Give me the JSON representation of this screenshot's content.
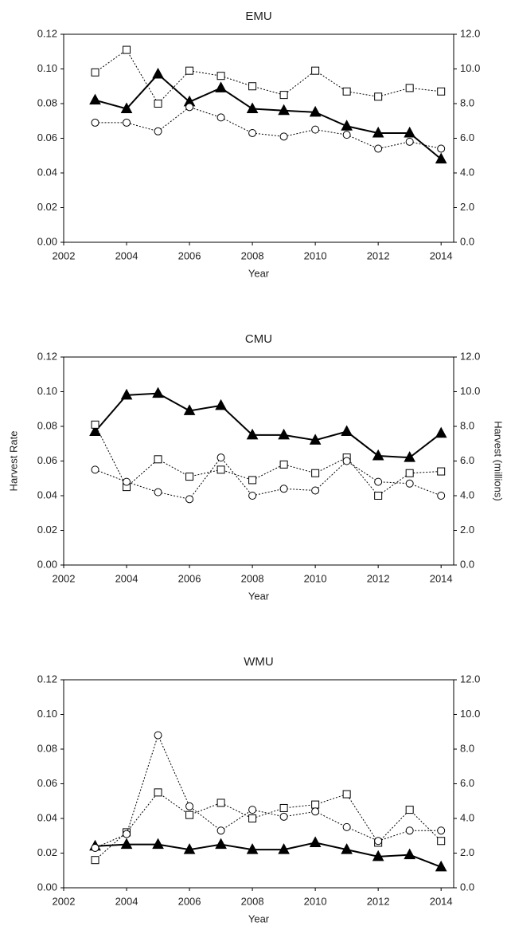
{
  "chart_data": [
    {
      "type": "line",
      "title": "EMU",
      "xlabel": "Year",
      "x": [
        2003,
        2004,
        2005,
        2006,
        2007,
        2008,
        2009,
        2010,
        2011,
        2012,
        2013,
        2014
      ],
      "xlim": [
        2002,
        2014.4
      ],
      "xticks": [
        2002,
        2004,
        2006,
        2008,
        2010,
        2012,
        2014
      ],
      "ylim": [
        0,
        0.12
      ],
      "yticks": [
        {
          "value": 0,
          "label": "0.00"
        },
        {
          "value": 0.02,
          "label": "0.02"
        },
        {
          "value": 0.04,
          "label": "0.04"
        },
        {
          "value": 0.06,
          "label": "0.06"
        },
        {
          "value": 0.08,
          "label": "0.08"
        },
        {
          "value": 0.1,
          "label": "0.10"
        },
        {
          "value": 0.12,
          "label": "0.12"
        }
      ],
      "y2lim": [
        0,
        12
      ],
      "y2ticks": [
        {
          "value": 0,
          "label": "0.0"
        },
        {
          "value": 2,
          "label": "2.0"
        },
        {
          "value": 4,
          "label": "4.0"
        },
        {
          "value": 6,
          "label": "6.0"
        },
        {
          "value": 8,
          "label": "8.0"
        },
        {
          "value": 10,
          "label": "10.0"
        },
        {
          "value": 12,
          "label": "12.0"
        }
      ],
      "series": [
        {
          "color": "#000000",
          "marker": "triangle",
          "line": "solid",
          "values": [
            0.082,
            0.077,
            0.097,
            0.081,
            0.089,
            0.077,
            0.076,
            0.075,
            0.067,
            0.063,
            0.063,
            0.048
          ]
        },
        {
          "color": "#000000",
          "marker": "square",
          "line": "dotted",
          "axis": "y2",
          "values": [
            9.8,
            11.1,
            8.0,
            9.9,
            9.6,
            9.0,
            8.5,
            9.9,
            8.7,
            8.4,
            8.9,
            8.7
          ]
        },
        {
          "color": "#000000",
          "marker": "circle",
          "line": "dotted",
          "values": [
            0.069,
            0.069,
            0.064,
            0.078,
            0.072,
            0.063,
            0.061,
            0.065,
            0.062,
            0.054,
            0.058,
            0.054
          ]
        }
      ]
    },
    {
      "type": "line",
      "title": "CMU",
      "xlabel": "Year",
      "ylabel": "Harvest Rate",
      "y2label": "Harvest (millions)",
      "x": [
        2003,
        2004,
        2005,
        2006,
        2007,
        2008,
        2009,
        2010,
        2011,
        2012,
        2013,
        2014
      ],
      "xlim": [
        2002,
        2014.4
      ],
      "xticks": [
        2002,
        2004,
        2006,
        2008,
        2010,
        2012,
        2014
      ],
      "ylim": [
        0,
        0.12
      ],
      "yticks": [
        {
          "value": 0,
          "label": "0.00"
        },
        {
          "value": 0.02,
          "label": "0.02"
        },
        {
          "value": 0.04,
          "label": "0.04"
        },
        {
          "value": 0.06,
          "label": "0.06"
        },
        {
          "value": 0.08,
          "label": "0.08"
        },
        {
          "value": 0.1,
          "label": "0.10"
        },
        {
          "value": 0.12,
          "label": "0.12"
        }
      ],
      "y2lim": [
        0,
        12
      ],
      "y2ticks": [
        {
          "value": 0,
          "label": "0.0"
        },
        {
          "value": 2,
          "label": "2.0"
        },
        {
          "value": 4,
          "label": "4.0"
        },
        {
          "value": 6,
          "label": "6.0"
        },
        {
          "value": 8,
          "label": "8.0"
        },
        {
          "value": 10,
          "label": "10.0"
        },
        {
          "value": 12,
          "label": "12.0"
        }
      ],
      "series": [
        {
          "color": "#000000",
          "marker": "triangle",
          "line": "solid",
          "values": [
            0.077,
            0.098,
            0.099,
            0.089,
            0.092,
            0.075,
            0.075,
            0.072,
            0.077,
            0.063,
            0.062,
            0.076
          ]
        },
        {
          "color": "#000000",
          "marker": "square",
          "line": "dotted",
          "axis": "y2",
          "values": [
            8.1,
            4.5,
            6.1,
            5.1,
            5.5,
            4.9,
            5.8,
            5.3,
            6.2,
            4.0,
            5.3,
            5.4
          ]
        },
        {
          "color": "#000000",
          "marker": "circle",
          "line": "dotted",
          "values": [
            0.055,
            0.048,
            0.042,
            0.038,
            0.062,
            0.04,
            0.044,
            0.043,
            0.06,
            0.048,
            0.047,
            0.04
          ]
        }
      ]
    },
    {
      "type": "line",
      "title": "WMU",
      "xlabel": "Year",
      "x": [
        2003,
        2004,
        2005,
        2006,
        2007,
        2008,
        2009,
        2010,
        2011,
        2012,
        2013,
        2014
      ],
      "xlim": [
        2002,
        2014.4
      ],
      "xticks": [
        2002,
        2004,
        2006,
        2008,
        2010,
        2012,
        2014
      ],
      "ylim": [
        0,
        0.12
      ],
      "yticks": [
        {
          "value": 0,
          "label": "0.00"
        },
        {
          "value": 0.02,
          "label": "0.02"
        },
        {
          "value": 0.04,
          "label": "0.04"
        },
        {
          "value": 0.06,
          "label": "0.06"
        },
        {
          "value": 0.08,
          "label": "0.08"
        },
        {
          "value": 0.1,
          "label": "0.10"
        },
        {
          "value": 0.12,
          "label": "0.12"
        }
      ],
      "y2lim": [
        0,
        12
      ],
      "y2ticks": [
        {
          "value": 0,
          "label": "0.0"
        },
        {
          "value": 2,
          "label": "2.0"
        },
        {
          "value": 4,
          "label": "4.0"
        },
        {
          "value": 6,
          "label": "6.0"
        },
        {
          "value": 8,
          "label": "8.0"
        },
        {
          "value": 10,
          "label": "10.0"
        },
        {
          "value": 12,
          "label": "12.0"
        }
      ],
      "series": [
        {
          "color": "#000000",
          "marker": "triangle",
          "line": "solid",
          "values": [
            0.024,
            0.025,
            0.025,
            0.022,
            0.025,
            0.022,
            0.022,
            0.026,
            0.022,
            0.018,
            0.019,
            0.012
          ]
        },
        {
          "color": "#000000",
          "marker": "square",
          "line": "dotted",
          "axis": "y2",
          "values": [
            1.6,
            3.2,
            5.5,
            4.2,
            4.9,
            4.0,
            4.6,
            4.8,
            5.4,
            2.6,
            4.5,
            2.7
          ]
        },
        {
          "color": "#000000",
          "marker": "circle",
          "line": "dotted",
          "values": [
            0.023,
            0.031,
            0.088,
            0.047,
            0.033,
            0.045,
            0.041,
            0.044,
            0.035,
            0.027,
            0.033,
            0.033
          ]
        }
      ]
    }
  ]
}
